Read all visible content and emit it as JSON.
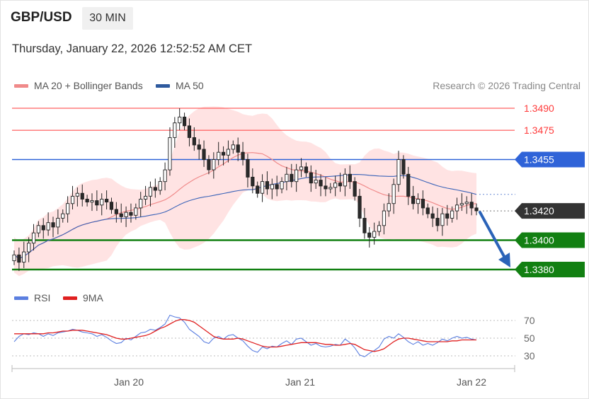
{
  "header": {
    "pair": "GBP/USD",
    "timeframe": "30 MIN",
    "datetime": "Thursday, January 22, 2026 12:52:52 AM CET"
  },
  "legend": {
    "ma20": "MA 20 + Bollinger Bands",
    "ma50": "MA 50",
    "credit": "Research © 2026 Trading Central",
    "rsi": "RSI",
    "rsi_ma": "9MA"
  },
  "colors": {
    "ma20": "#f08a8a",
    "ma50": "#3a63b8",
    "bollinger_fill": "#ffd9d9",
    "resistance": "#ff3b3b",
    "pivot": "#2f63d8",
    "support": "#128012",
    "last_price": "#333333",
    "rsi": "#5b7fe0",
    "rsi_ma": "#e02020",
    "candle_up": "#ffffff",
    "candle_down": "#2a2a2a"
  },
  "chart_data": {
    "type": "candlestick",
    "instrument": "GBP/USD",
    "interval": "30 MIN",
    "x_ticks": [
      "Jan 20",
      "Jan 21",
      "Jan 22"
    ],
    "price_range": [
      1.3375,
      1.3495
    ],
    "levels": [
      {
        "label": "1.3490",
        "value": 1.349,
        "kind": "resistance"
      },
      {
        "label": "1.3475",
        "value": 1.3475,
        "kind": "resistance"
      },
      {
        "label": "1.3455",
        "value": 1.3455,
        "kind": "pivot"
      },
      {
        "label": "1.3420",
        "value": 1.342,
        "kind": "last"
      },
      {
        "label": "1.3400",
        "value": 1.34,
        "kind": "support"
      },
      {
        "label": "1.3380",
        "value": 1.338,
        "kind": "support"
      }
    ],
    "forecast_arrow": {
      "from": 1.342,
      "to": 1.338,
      "direction": "down"
    },
    "close_path": [
      1.339,
      1.3385,
      1.3392,
      1.3398,
      1.3405,
      1.341,
      1.3407,
      1.3412,
      1.3409,
      1.3415,
      1.3418,
      1.3425,
      1.343,
      1.3432,
      1.3428,
      1.3426,
      1.3427,
      1.3424,
      1.3428,
      1.3426,
      1.3421,
      1.3418,
      1.3416,
      1.3419,
      1.3417,
      1.3422,
      1.3428,
      1.343,
      1.3436,
      1.3434,
      1.344,
      1.3448,
      1.347,
      1.348,
      1.3484,
      1.3478,
      1.347,
      1.3465,
      1.3462,
      1.3455,
      1.3448,
      1.3455,
      1.346,
      1.3458,
      1.3462,
      1.3465,
      1.346,
      1.3455,
      1.3443,
      1.3437,
      1.3432,
      1.344,
      1.3435,
      1.3438,
      1.3435,
      1.344,
      1.3445,
      1.344,
      1.3448,
      1.345,
      1.3446,
      1.3439,
      1.3441,
      1.3437,
      1.3435,
      1.3436,
      1.3439,
      1.3437,
      1.3445,
      1.344,
      1.343,
      1.3415,
      1.3405,
      1.3402,
      1.3406,
      1.341,
      1.342,
      1.3425,
      1.3438,
      1.3455,
      1.3445,
      1.343,
      1.3425,
      1.3428,
      1.3422,
      1.3418,
      1.3415,
      1.341,
      1.3418,
      1.3415,
      1.342,
      1.3424,
      1.3425,
      1.3426,
      1.3422,
      1.342
    ],
    "rsi": {
      "y_ticks": [
        30,
        50,
        70
      ],
      "levels": [
        30,
        50,
        70
      ],
      "rsi_path": [
        46,
        52,
        55,
        54,
        56,
        55,
        52,
        55,
        53,
        56,
        57,
        58,
        60,
        59,
        57,
        56,
        55,
        52,
        54,
        51,
        47,
        44,
        45,
        50,
        48,
        52,
        56,
        57,
        60,
        59,
        62,
        66,
        76,
        74,
        73,
        68,
        60,
        56,
        52,
        46,
        44,
        50,
        52,
        49,
        53,
        54,
        50,
        47,
        41,
        36,
        34,
        40,
        38,
        41,
        40,
        44,
        47,
        43,
        49,
        50,
        46,
        42,
        44,
        41,
        40,
        41,
        43,
        42,
        49,
        45,
        39,
        31,
        29,
        33,
        36,
        40,
        49,
        52,
        50,
        55,
        51,
        46,
        43,
        46,
        42,
        44,
        42,
        45,
        49,
        47,
        50,
        52,
        50,
        51,
        49,
        48
      ],
      "ma_path": [
        55,
        55,
        55,
        55,
        55,
        55,
        55,
        56,
        56,
        57,
        58,
        58,
        59,
        59,
        59,
        58,
        57,
        56,
        55,
        54,
        52,
        50,
        49,
        49,
        50,
        51,
        52,
        53,
        55,
        58,
        61,
        63,
        66,
        69,
        71,
        71,
        70,
        68,
        64,
        60,
        56,
        52,
        50,
        49,
        49,
        49,
        50,
        49,
        47,
        45,
        43,
        41,
        40,
        40,
        40,
        41,
        42,
        43,
        44,
        45,
        45,
        45,
        45,
        44,
        43,
        43,
        42,
        42,
        43,
        44,
        43,
        40,
        37,
        36,
        35,
        36,
        38,
        42,
        46,
        49,
        50,
        50,
        49,
        48,
        47,
        46,
        46,
        46,
        46,
        46,
        47,
        47,
        48,
        48,
        48,
        48
      ]
    }
  }
}
